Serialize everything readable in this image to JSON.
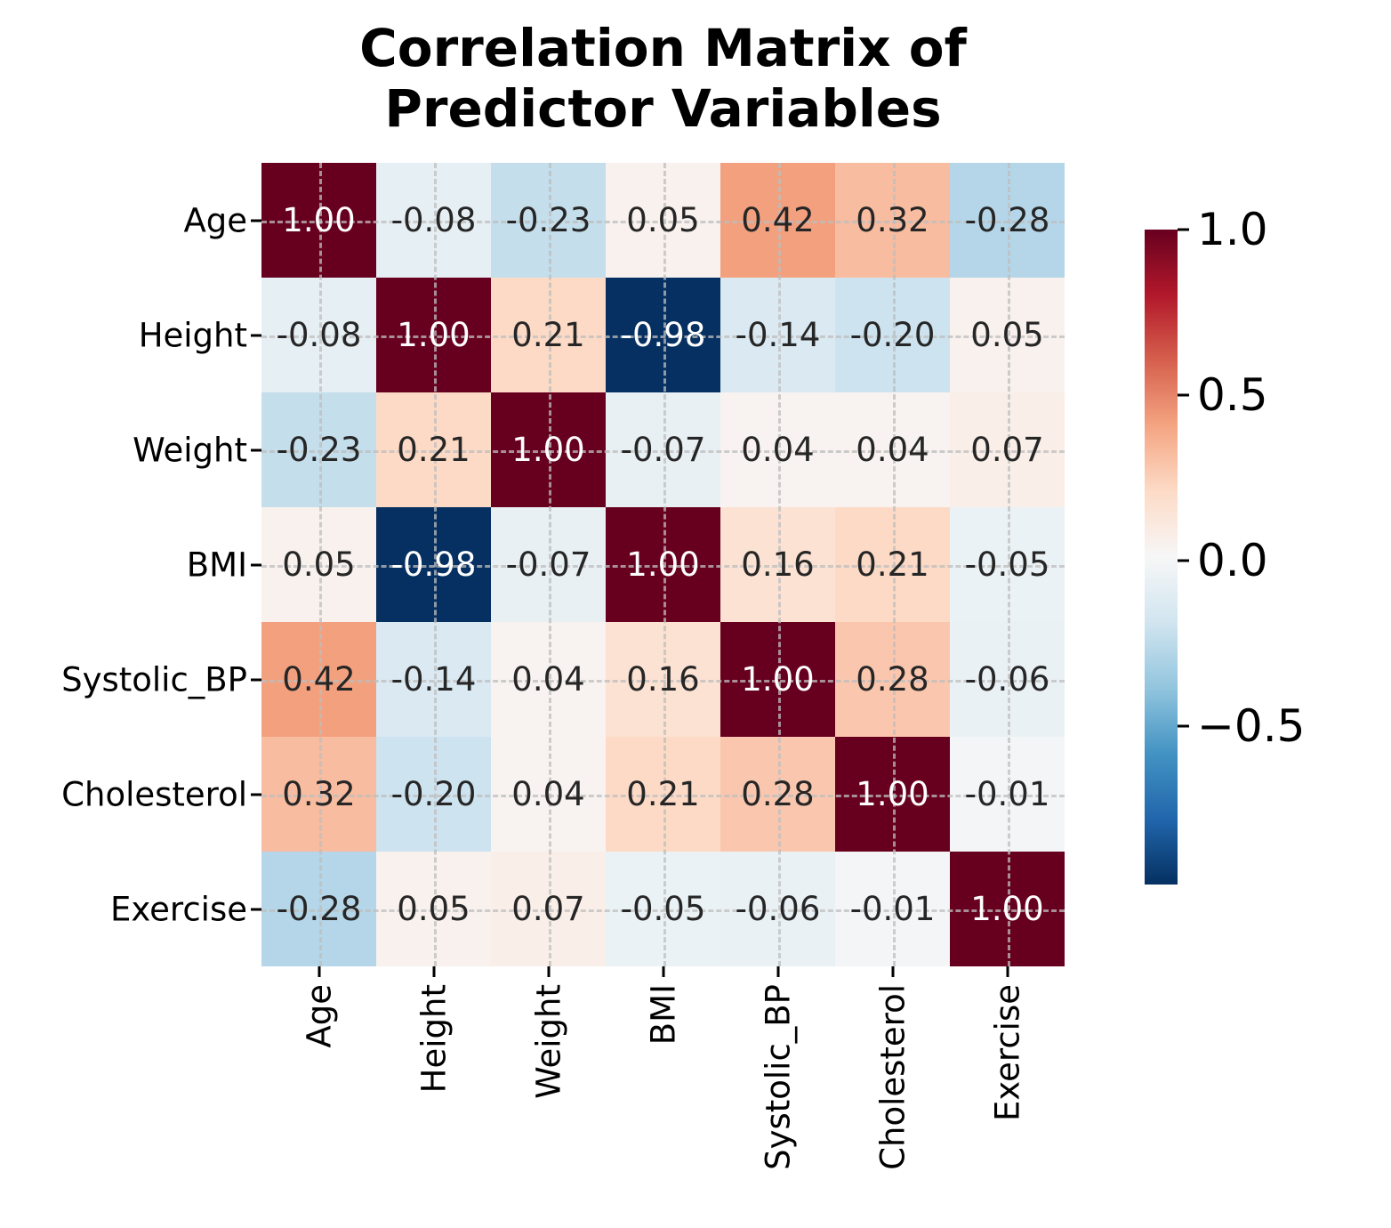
{
  "title": {
    "lines": [
      "Correlation Matrix of",
      "Predictor Variables"
    ]
  },
  "chart_data": {
    "type": "heatmap",
    "title": "Correlation Matrix of Predictor Variables",
    "variables": [
      "Age",
      "Height",
      "Weight",
      "BMI",
      "Systolic_BP",
      "Cholesterol",
      "Exercise"
    ],
    "matrix": [
      [
        1.0,
        -0.08,
        -0.23,
        0.05,
        0.42,
        0.32,
        -0.28
      ],
      [
        -0.08,
        1.0,
        0.21,
        -0.98,
        -0.14,
        -0.2,
        0.05
      ],
      [
        -0.23,
        0.21,
        1.0,
        -0.07,
        0.04,
        0.04,
        0.07
      ],
      [
        0.05,
        -0.98,
        -0.07,
        1.0,
        0.16,
        0.21,
        -0.05
      ],
      [
        0.42,
        -0.14,
        0.04,
        0.16,
        1.0,
        0.28,
        -0.06
      ],
      [
        0.32,
        -0.2,
        0.04,
        0.21,
        0.28,
        1.0,
        -0.01
      ],
      [
        -0.28,
        0.05,
        0.07,
        -0.05,
        -0.06,
        -0.01,
        1.0
      ]
    ],
    "value_format_decimals": 2,
    "vmin": -0.98,
    "vmax": 1.0,
    "colormap": {
      "name": "RdBu_r",
      "anchors": [
        "#053061",
        "#2166ac",
        "#4393c3",
        "#92c5de",
        "#d1e5f0",
        "#f7f7f7",
        "#fddbc7",
        "#f4a582",
        "#d6604d",
        "#b2182b",
        "#67001f"
      ]
    },
    "colorbar": {
      "ticks": [
        {
          "label": "1.0",
          "value": 1.0
        },
        {
          "label": "0.5",
          "value": 0.5
        },
        {
          "label": "0.0",
          "value": 0.0
        },
        {
          "label": "−0.5",
          "value": -0.5
        }
      ],
      "position": "right"
    },
    "grid": {
      "on": true,
      "linestyle": "dashed"
    },
    "annotation_colors": {
      "dark_text": "#262626",
      "light_text": "#ffffff"
    },
    "axis_text_color": "#000000"
  }
}
